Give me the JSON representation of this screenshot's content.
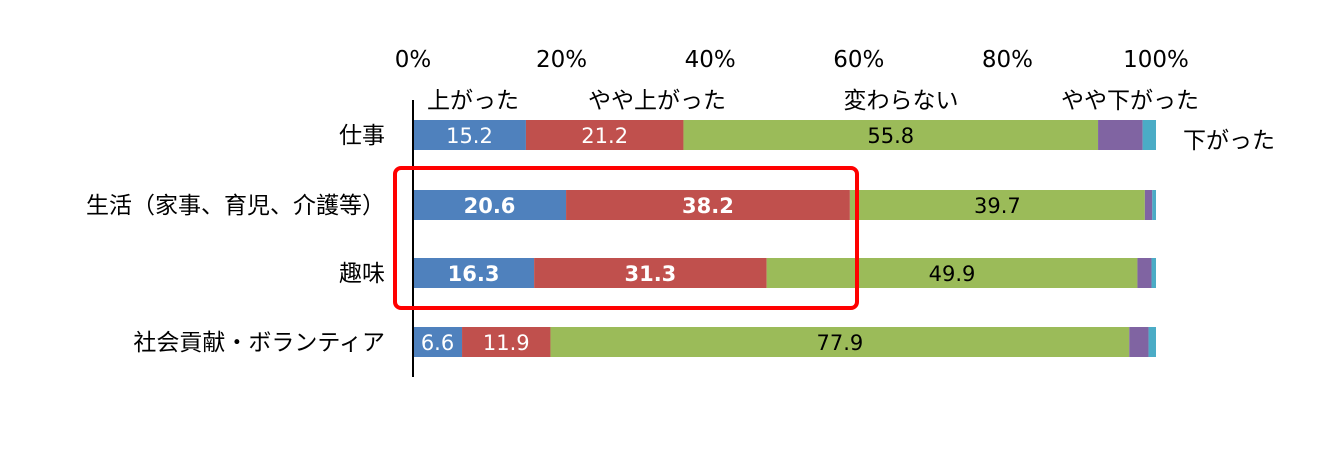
{
  "chart_data": {
    "type": "bar",
    "orientation": "horizontal",
    "stacked": true,
    "percent": true,
    "x_ticks": [
      "0%",
      "20%",
      "40%",
      "60%",
      "80%",
      "100%"
    ],
    "xlim": [
      0,
      100
    ],
    "categories": [
      "仕事",
      "生活（家事、育児、介護等）",
      "趣味",
      "社会貢献・ボランティア"
    ],
    "series": [
      {
        "name": "上がった",
        "color": "#4f81bd",
        "values": [
          15.2,
          20.6,
          16.3,
          6.6
        ]
      },
      {
        "name": "やや上がった",
        "color": "#c0504d",
        "values": [
          21.2,
          38.2,
          31.3,
          11.9
        ]
      },
      {
        "name": "変わらない",
        "color": "#9bbb59",
        "values": [
          55.8,
          39.7,
          49.9,
          77.9
        ]
      },
      {
        "name": "やや下がった",
        "color": "#8064a2",
        "values": [
          6.0,
          1.0,
          1.9,
          2.6
        ]
      },
      {
        "name": "下がった",
        "color": "#4bacc6",
        "values": [
          1.8,
          0.5,
          0.6,
          1.0
        ]
      }
    ],
    "data_labels": [
      [
        "15.2",
        "21.2",
        "55.8"
      ],
      [
        "20.6",
        "38.2",
        "39.7"
      ],
      [
        "16.3",
        "31.3",
        "49.9"
      ],
      [
        "6.6",
        "11.9",
        "77.9"
      ]
    ],
    "bold_labels": [
      [
        false,
        false,
        false
      ],
      [
        true,
        true,
        false
      ],
      [
        true,
        true,
        false
      ],
      [
        false,
        false,
        false
      ]
    ],
    "highlight_categories": [
      1,
      2
    ],
    "highlight_color": "#ff0000",
    "grid": false,
    "legend_placement": "top"
  }
}
